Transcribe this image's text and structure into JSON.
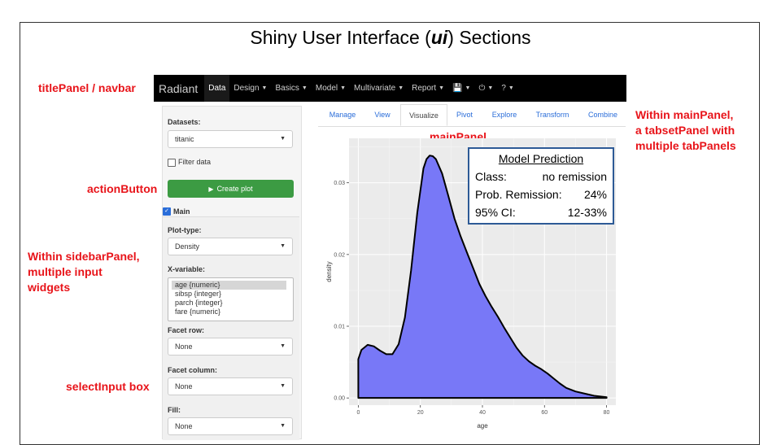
{
  "slide": {
    "title_prefix": "Shiny User Interface (",
    "title_em": "ui",
    "title_suffix": ") Sections"
  },
  "annotations": {
    "navbar": "titlePanel / navbar",
    "sidebar": "sidebarPanel",
    "main": "mainPanel",
    "tabset_line1": "Within mainPanel,",
    "tabset_line2": "a tabsetPanel with",
    "tabset_line3": "multiple tabPanels",
    "action": "actionButton",
    "widgets_line1": "Within sidebarPanel,",
    "widgets_line2": "multiple input",
    "widgets_line3": "widgets",
    "select": "selectInput box"
  },
  "navbar": {
    "brand": "Radiant",
    "items": [
      {
        "label": "Data",
        "caret": false,
        "active": true
      },
      {
        "label": "Design",
        "caret": true
      },
      {
        "label": "Basics",
        "caret": true
      },
      {
        "label": "Model",
        "caret": true
      },
      {
        "label": "Multivariate",
        "caret": true
      },
      {
        "label": "Report",
        "caret": true
      },
      {
        "label": "💾",
        "caret": true
      },
      {
        "label": "⏻",
        "caret": true
      },
      {
        "label": "?",
        "caret": true
      }
    ]
  },
  "sidebar": {
    "datasets_label": "Datasets:",
    "dataset_value": "titanic",
    "filter_label": "Filter data",
    "create_plot": "Create plot",
    "main_label": "Main",
    "plot_type_label": "Plot-type:",
    "plot_type_value": "Density",
    "x_variable_label": "X-variable:",
    "x_options": [
      "age {numeric}",
      "sibsp {integer}",
      "parch {integer}",
      "fare {numeric}"
    ],
    "facet_row_label": "Facet row:",
    "facet_row_value": "None",
    "facet_col_label": "Facet column:",
    "facet_col_value": "None",
    "fill_label": "Fill:",
    "fill_value": "None"
  },
  "tabs": [
    "Manage",
    "View",
    "Visualize",
    "Pivot",
    "Explore",
    "Transform",
    "Combine"
  ],
  "active_tab": "Visualize",
  "prediction": {
    "title": "Model Prediction",
    "rows": [
      {
        "k": "Class:",
        "v": "no remission"
      },
      {
        "k": "Prob. Remission:",
        "v": "24%"
      },
      {
        "k": "95% CI:",
        "v": "12-33%"
      }
    ]
  },
  "chart_data": {
    "type": "area",
    "xlabel": "age",
    "ylabel": "density",
    "xlim": [
      -3,
      83
    ],
    "ylim": [
      -0.001,
      0.0362
    ],
    "xticks": [
      0,
      20,
      40,
      60,
      80
    ],
    "yticks": [
      0.0,
      0.01,
      0.02,
      0.03
    ],
    "ytick_labels": [
      "0.00",
      "0.01",
      "0.02",
      "0.03"
    ],
    "fill_color": "#7878f7",
    "background": "#ebebeb",
    "grid": true,
    "x": [
      0,
      1,
      3,
      5,
      7,
      9,
      11,
      13,
      15,
      17,
      19,
      21,
      22,
      23,
      24,
      25,
      27,
      29,
      31,
      33,
      35,
      37,
      39,
      41,
      43,
      45,
      47,
      49,
      51,
      53,
      55,
      57,
      59,
      61,
      63,
      65,
      67,
      70,
      73,
      76,
      80
    ],
    "y": [
      0.0054,
      0.0067,
      0.0074,
      0.0072,
      0.0066,
      0.0061,
      0.0061,
      0.0075,
      0.0112,
      0.0178,
      0.0258,
      0.032,
      0.0333,
      0.0338,
      0.0337,
      0.0333,
      0.0313,
      0.0282,
      0.025,
      0.0225,
      0.0203,
      0.0181,
      0.0159,
      0.0142,
      0.0127,
      0.0113,
      0.0098,
      0.0084,
      0.007,
      0.0059,
      0.0051,
      0.0045,
      0.004,
      0.0034,
      0.0027,
      0.002,
      0.0014,
      0.0009,
      0.0006,
      0.0003,
      0.0001
    ]
  }
}
